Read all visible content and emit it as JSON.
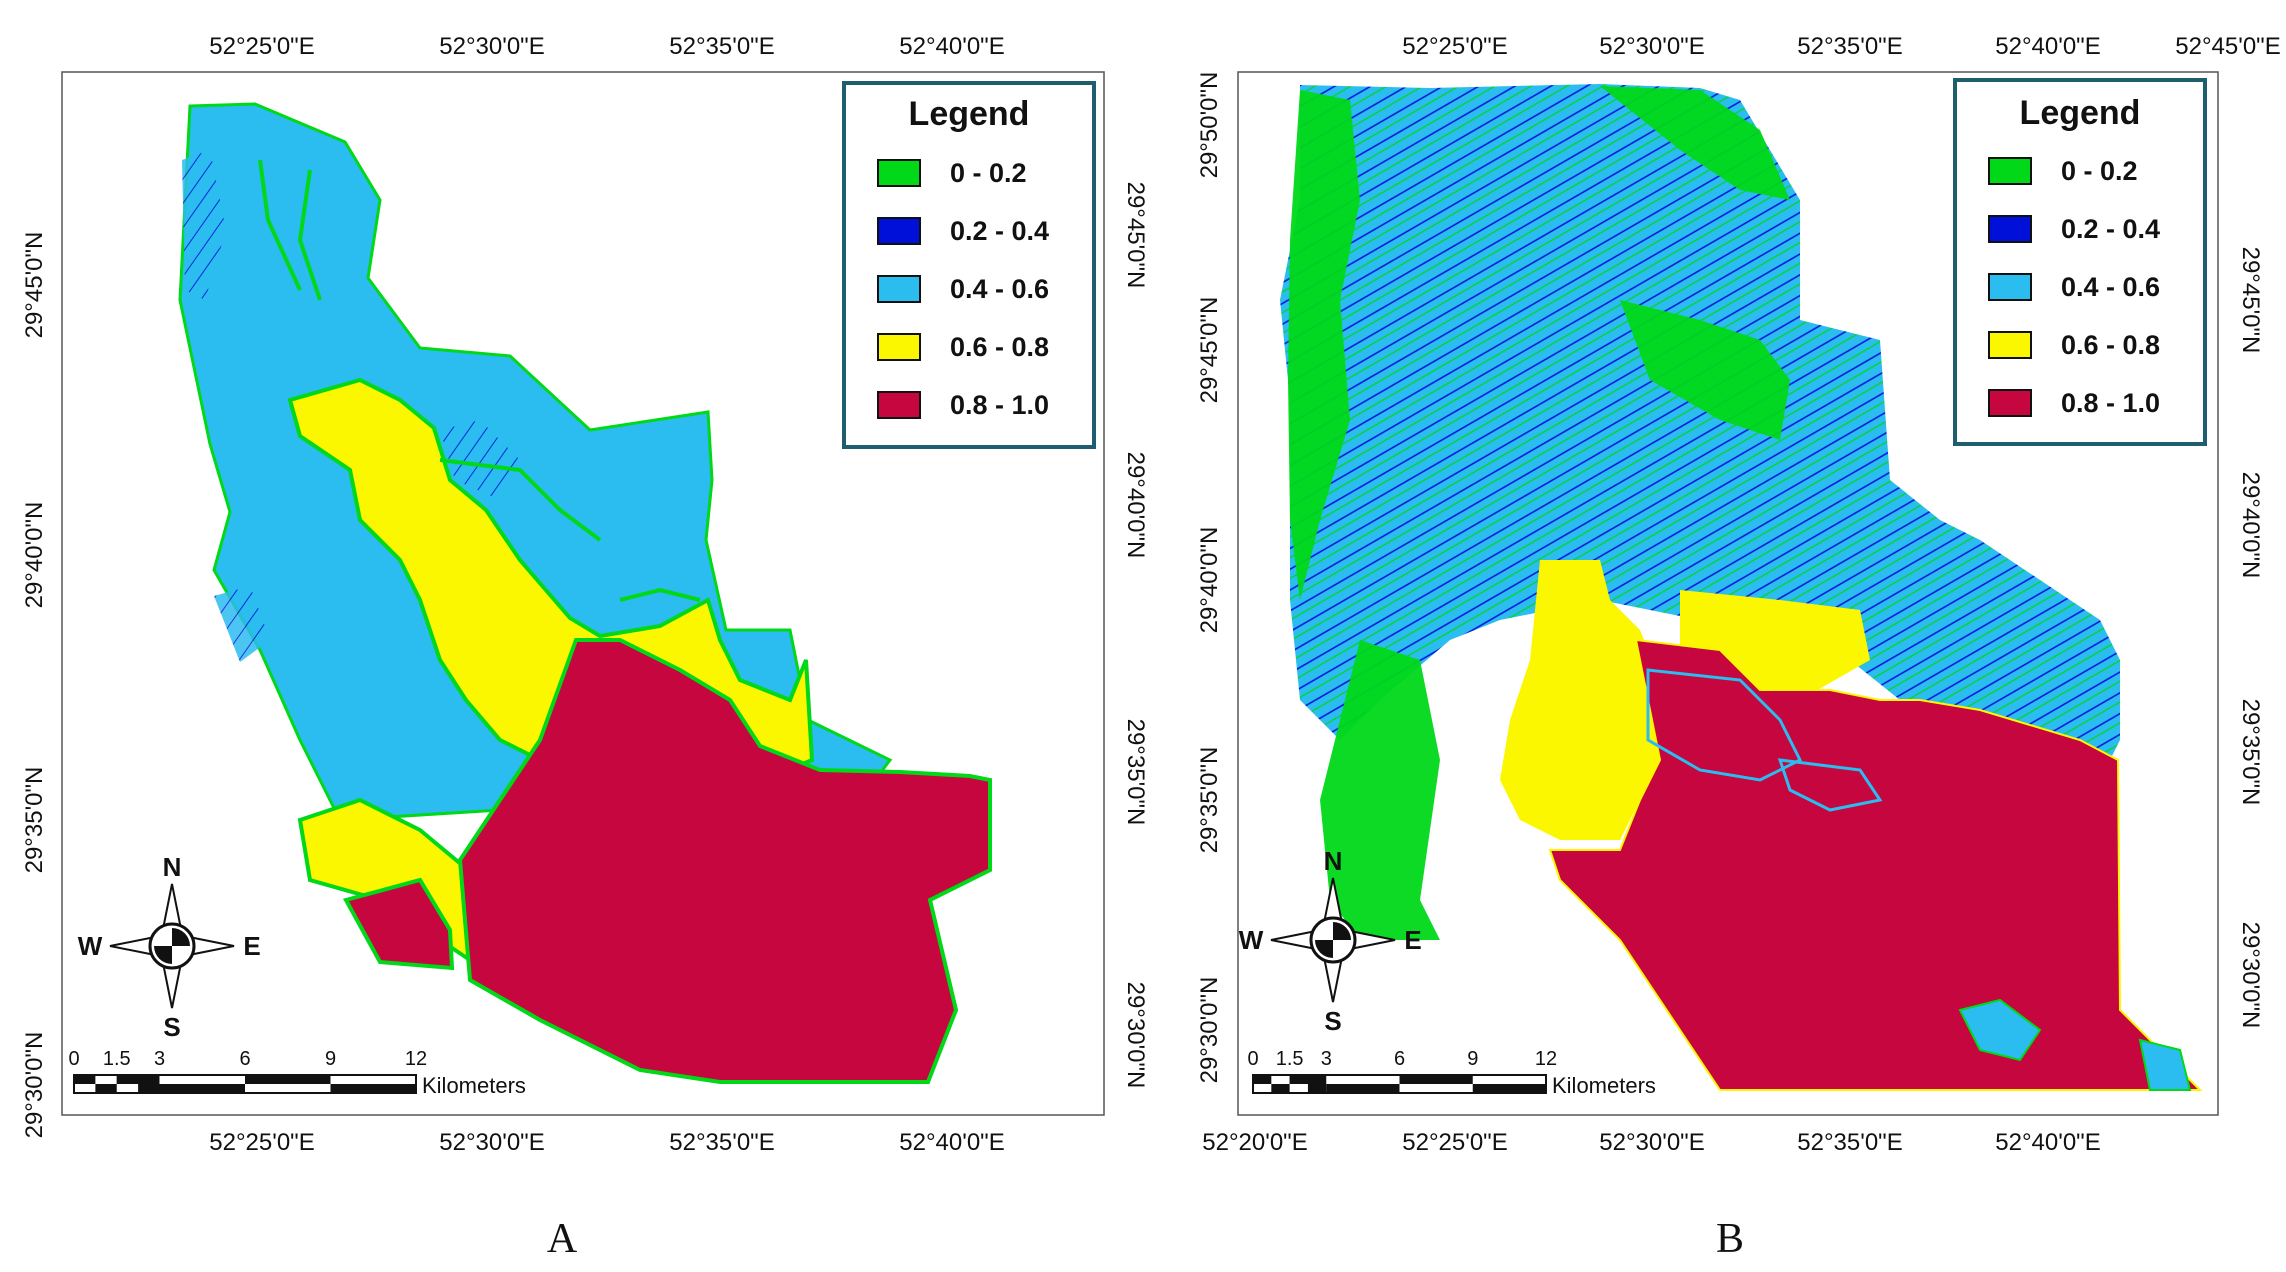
{
  "panels": [
    {
      "id": "A",
      "caption": "A",
      "top_lon_labels": [
        "52°25'0\"E",
        "52°30'0\"E",
        "52°35'0\"E",
        "52°40'0\"E"
      ],
      "bottom_lon_labels": [
        "52°25'0\"E",
        "52°30'0\"E",
        "52°35'0\"E",
        "52°40'0\"E"
      ],
      "left_lat_labels": [
        "29°45'0\"N",
        "29°40'0\"N",
        "29°35'0\"N",
        "29°30'0\"N"
      ],
      "right_lat_labels": [
        "29°45'0\"N",
        "29°40'0\"N",
        "29°35'0\"N",
        "29°30'0\"N"
      ]
    },
    {
      "id": "B",
      "caption": "B",
      "top_lon_labels": [
        "52°25'0\"E",
        "52°30'0\"E",
        "52°35'0\"E",
        "52°40'0\"E",
        "52°45'0\"E"
      ],
      "bottom_lon_labels": [
        "52°20'0\"E",
        "52°25'0\"E",
        "52°30'0\"E",
        "52°35'0\"E",
        "52°40'0\"E"
      ],
      "left_lat_labels": [
        "29°50'0\"N",
        "29°45'0\"N",
        "29°40'0\"N",
        "29°35'0\"N",
        "29°30'0\"N"
      ],
      "right_lat_labels": [
        "29°45'0\"N",
        "29°40'0\"N",
        "29°35'0\"N",
        "29°30'0\"N"
      ]
    }
  ],
  "legend": {
    "title": "Legend",
    "classes": [
      {
        "label": "0 - 0.2",
        "color": "#00d818"
      },
      {
        "label": "0.2 - 0.4",
        "color": "#0010d8"
      },
      {
        "label": "0.4 - 0.6",
        "color": "#2bbcf0"
      },
      {
        "label": "0.6 - 0.8",
        "color": "#fbf700"
      },
      {
        "label": "0.8 - 1.0",
        "color": "#c6063e"
      }
    ]
  },
  "compass": {
    "n": "N",
    "s": "S",
    "e": "E",
    "w": "W"
  },
  "scalebar": {
    "ticks": [
      "0",
      "1.5",
      "3",
      "6",
      "9",
      "12"
    ],
    "unit": "Kilometers"
  }
}
